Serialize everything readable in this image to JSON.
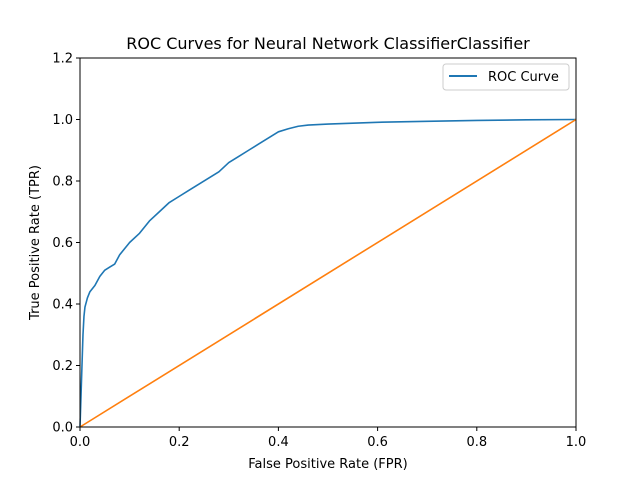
{
  "chart_data": {
    "type": "line",
    "title": "ROC Curves for Neural Network ClassifierClassifier",
    "xlabel": "False Positive Rate (FPR)",
    "ylabel": "True Positive Rate (TPR)",
    "xlim": [
      0.0,
      1.0
    ],
    "ylim": [
      0.0,
      1.2
    ],
    "x_ticks": [
      "0.0",
      "0.2",
      "0.4",
      "0.6",
      "0.8",
      "1.0"
    ],
    "y_ticks": [
      "0.0",
      "0.2",
      "0.4",
      "0.6",
      "0.8",
      "1.0",
      "1.2"
    ],
    "grid": false,
    "legend_position": "top-right",
    "series": [
      {
        "name": "ROC Curve",
        "color": "#1f77b4",
        "x": [
          0.0,
          0.002,
          0.004,
          0.006,
          0.008,
          0.01,
          0.015,
          0.02,
          0.03,
          0.04,
          0.05,
          0.06,
          0.07,
          0.08,
          0.09,
          0.1,
          0.12,
          0.14,
          0.16,
          0.18,
          0.2,
          0.22,
          0.24,
          0.26,
          0.28,
          0.3,
          0.32,
          0.34,
          0.36,
          0.38,
          0.4,
          0.42,
          0.44,
          0.46,
          0.5,
          0.55,
          0.6,
          0.7,
          0.8,
          0.9,
          1.0
        ],
        "y": [
          0.0,
          0.1,
          0.2,
          0.3,
          0.36,
          0.39,
          0.42,
          0.44,
          0.46,
          0.49,
          0.51,
          0.52,
          0.53,
          0.56,
          0.58,
          0.6,
          0.63,
          0.67,
          0.7,
          0.73,
          0.75,
          0.77,
          0.79,
          0.81,
          0.83,
          0.86,
          0.88,
          0.9,
          0.92,
          0.94,
          0.96,
          0.97,
          0.978,
          0.982,
          0.985,
          0.988,
          0.991,
          0.994,
          0.997,
          0.999,
          1.0
        ]
      },
      {
        "color": "#ff7f0e",
        "x": [
          0.0,
          1.0
        ],
        "y": [
          0.0,
          1.0
        ]
      }
    ]
  }
}
